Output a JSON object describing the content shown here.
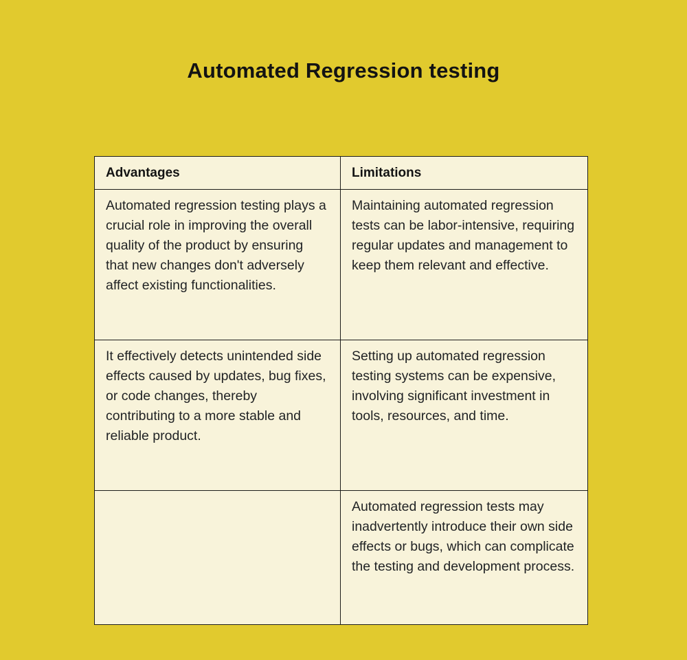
{
  "page": {
    "title": "Automated Regression testing"
  },
  "colors": {
    "background": "#e1ca2e",
    "cell_background": "#f8f3da",
    "border": "#1c1c1a",
    "text": "#212325"
  },
  "table": {
    "columns": [
      {
        "label": "Advantages"
      },
      {
        "label": "Limitations"
      }
    ],
    "rows": [
      {
        "advantages": "Automated regression testing plays a crucial role in improving the overall quality of the product by ensuring that new changes don't adversely affect existing functionalities.",
        "limitations": "Maintaining automated regression tests can be labor-intensive, requiring regular updates and management to keep them relevant and effective."
      },
      {
        "advantages": "It effectively detects unintended side effects caused by updates, bug fixes, or code changes, thereby contributing to a more stable and reliable product.",
        "limitations": "Setting up automated regression testing systems can be expensive, involving significant investment in tools, resources, and time."
      },
      {
        "advantages": "",
        "limitations": "Automated regression tests may inadvertently introduce their own side effects or bugs, which can complicate the testing and development process."
      }
    ]
  }
}
